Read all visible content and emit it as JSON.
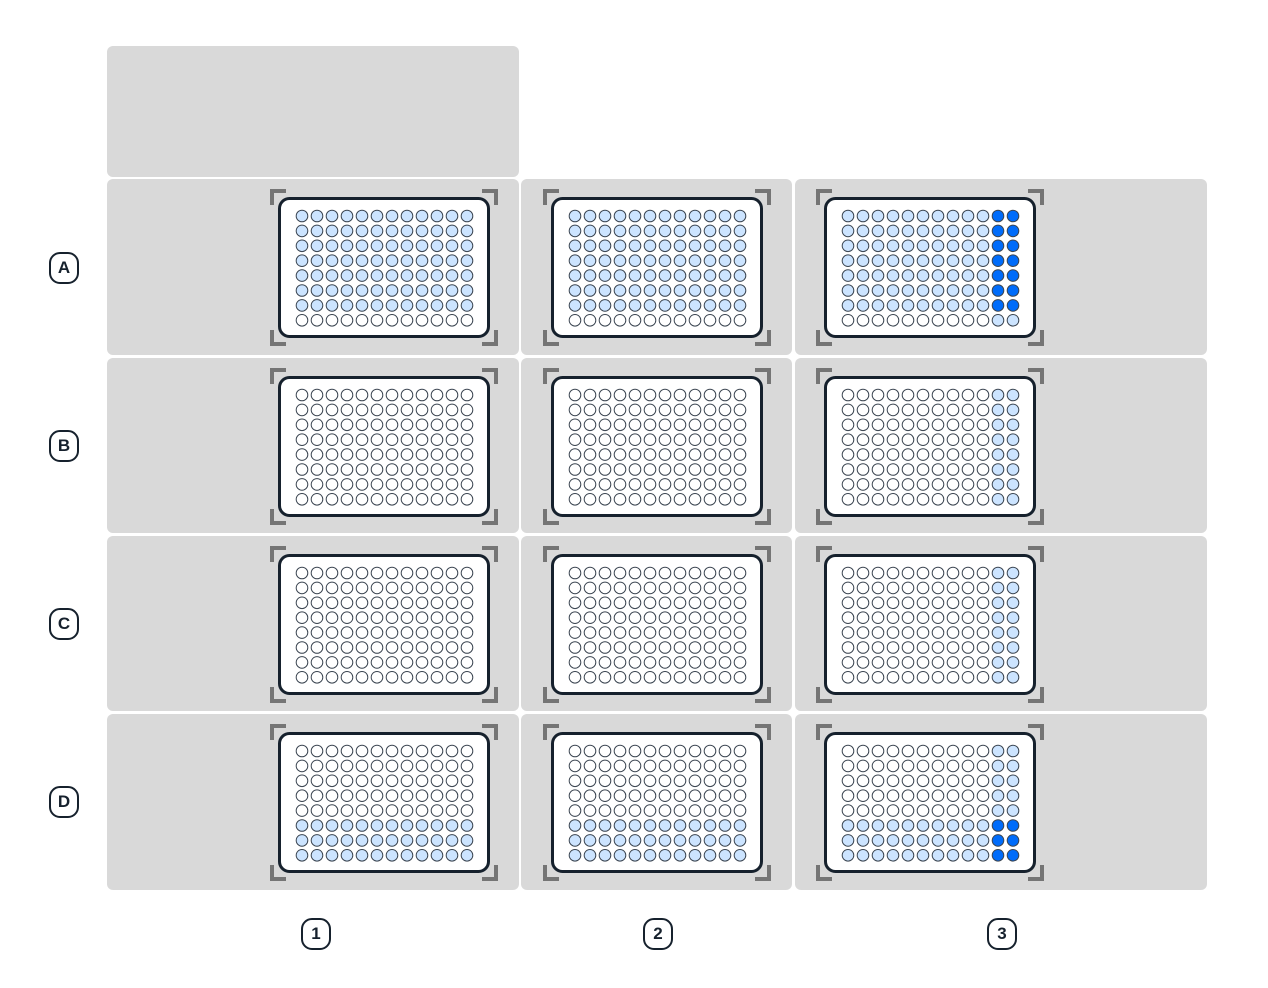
{
  "deck": {
    "row_labels": [
      "A",
      "B",
      "C",
      "D"
    ],
    "column_labels": [
      "1",
      "2",
      "3"
    ],
    "colors": {
      "tile": "#d9d9d9",
      "plate_border": "#16212d",
      "well_empty": "#ffffff",
      "well_light": "#cce4ff",
      "well_dark": "#006cfa",
      "corner_bracket": "#757575"
    },
    "well_legend": {
      "0": "empty",
      "1": "light-blue",
      "2": "dark-blue"
    },
    "slots": [
      {
        "slot": "A1",
        "labware": "96-well-plate",
        "wells": [
          "111111111111",
          "111111111111",
          "111111111111",
          "111111111111",
          "111111111111",
          "111111111111",
          "111111111111",
          "000000000000"
        ]
      },
      {
        "slot": "A2",
        "labware": "96-well-plate",
        "wells": [
          "111111111111",
          "111111111111",
          "111111111111",
          "111111111111",
          "111111111111",
          "111111111111",
          "111111111111",
          "000000000000"
        ]
      },
      {
        "slot": "A3",
        "labware": "96-well-plate",
        "wells": [
          "111111111122",
          "111111111122",
          "111111111122",
          "111111111122",
          "111111111122",
          "111111111122",
          "111111111122",
          "000000000011"
        ]
      },
      {
        "slot": "B1",
        "labware": "96-well-plate",
        "wells": [
          "000000000000",
          "000000000000",
          "000000000000",
          "000000000000",
          "000000000000",
          "000000000000",
          "000000000000",
          "000000000000"
        ]
      },
      {
        "slot": "B2",
        "labware": "96-well-plate",
        "wells": [
          "000000000000",
          "000000000000",
          "000000000000",
          "000000000000",
          "000000000000",
          "000000000000",
          "000000000000",
          "000000000000"
        ]
      },
      {
        "slot": "B3",
        "labware": "96-well-plate",
        "wells": [
          "000000000011",
          "000000000011",
          "000000000011",
          "000000000011",
          "000000000011",
          "000000000011",
          "000000000011",
          "000000000011"
        ]
      },
      {
        "slot": "C1",
        "labware": "96-well-plate",
        "wells": [
          "000000000000",
          "000000000000",
          "000000000000",
          "000000000000",
          "000000000000",
          "000000000000",
          "000000000000",
          "000000000000"
        ]
      },
      {
        "slot": "C2",
        "labware": "96-well-plate",
        "wells": [
          "000000000000",
          "000000000000",
          "000000000000",
          "000000000000",
          "000000000000",
          "000000000000",
          "000000000000",
          "000000000000"
        ]
      },
      {
        "slot": "C3",
        "labware": "96-well-plate",
        "wells": [
          "000000000011",
          "000000000011",
          "000000000011",
          "000000000011",
          "000000000011",
          "000000000011",
          "000000000011",
          "000000000011"
        ]
      },
      {
        "slot": "D1",
        "labware": "96-well-plate",
        "wells": [
          "000000000000",
          "000000000000",
          "000000000000",
          "000000000000",
          "000000000000",
          "111111111111",
          "111111111111",
          "111111111111"
        ]
      },
      {
        "slot": "D2",
        "labware": "96-well-plate",
        "wells": [
          "000000000000",
          "000000000000",
          "000000000000",
          "000000000000",
          "000000000000",
          "111111111111",
          "111111111111",
          "111111111111"
        ]
      },
      {
        "slot": "D3",
        "labware": "96-well-plate",
        "wells": [
          "000000000011",
          "000000000011",
          "000000000011",
          "000000000011",
          "000000000011",
          "111111111122",
          "111111111122",
          "111111111122"
        ]
      }
    ]
  }
}
